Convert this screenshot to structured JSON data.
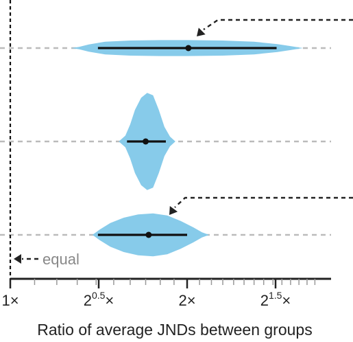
{
  "chart_data": {
    "type": "violin",
    "title": "",
    "xlabel": "Ratio of average JNDs between groups",
    "ylabel": "",
    "x_scale": "log2",
    "xlim": [
      1,
      3.3
    ],
    "x_ticks": [
      {
        "value": 1,
        "base": "1",
        "exp": "",
        "suffix": "×"
      },
      {
        "value": 1.4142,
        "base": "2",
        "exp": "0.5",
        "suffix": "×"
      },
      {
        "value": 2,
        "base": "2",
        "exp": "",
        "suffix": "×"
      },
      {
        "value": 2.8284,
        "base": "2",
        "exp": "1.5",
        "suffix": "×"
      }
    ],
    "reference_line": {
      "value": 1,
      "label": "equal"
    },
    "rows": [
      {
        "median": 2.01,
        "interval": [
          1.41,
          2.84
        ],
        "density": [
          [
            1.27,
            0.0
          ],
          [
            1.31,
            0.15
          ],
          [
            1.36,
            0.45
          ],
          [
            1.45,
            0.8
          ],
          [
            1.6,
            0.95
          ],
          [
            1.8,
            1.0
          ],
          [
            2.0,
            1.0
          ],
          [
            2.3,
            0.95
          ],
          [
            2.6,
            0.8
          ],
          [
            2.85,
            0.5
          ],
          [
            3.0,
            0.25
          ],
          [
            3.1,
            0.08
          ],
          [
            3.15,
            0.0
          ]
        ],
        "max_halfwidth_frac": 0.085,
        "annotated": true
      },
      {
        "median": 1.7,
        "interval": [
          1.58,
          1.84
        ],
        "density": [
          [
            1.53,
            0.0
          ],
          [
            1.57,
            0.12
          ],
          [
            1.6,
            0.35
          ],
          [
            1.63,
            0.65
          ],
          [
            1.67,
            0.9
          ],
          [
            1.71,
            1.0
          ],
          [
            1.75,
            0.95
          ],
          [
            1.79,
            0.65
          ],
          [
            1.83,
            0.3
          ],
          [
            1.87,
            0.1
          ],
          [
            1.91,
            0.0
          ]
        ],
        "max_halfwidth_frac": 0.52,
        "annotated": false
      },
      {
        "median": 1.72,
        "interval": [
          1.41,
          2.0
        ],
        "density": [
          [
            1.38,
            0.0
          ],
          [
            1.42,
            0.25
          ],
          [
            1.48,
            0.55
          ],
          [
            1.56,
            0.8
          ],
          [
            1.65,
            0.95
          ],
          [
            1.75,
            1.0
          ],
          [
            1.85,
            0.9
          ],
          [
            1.95,
            0.65
          ],
          [
            2.05,
            0.35
          ],
          [
            2.12,
            0.12
          ],
          [
            2.18,
            0.0
          ]
        ],
        "max_halfwidth_frac": 0.23,
        "annotated": true
      }
    ],
    "colors": {
      "violin": "#87cbea",
      "interval": "#111111",
      "guide": "#bbbbbb",
      "axis": "#222222",
      "arrow": "#222222"
    }
  }
}
